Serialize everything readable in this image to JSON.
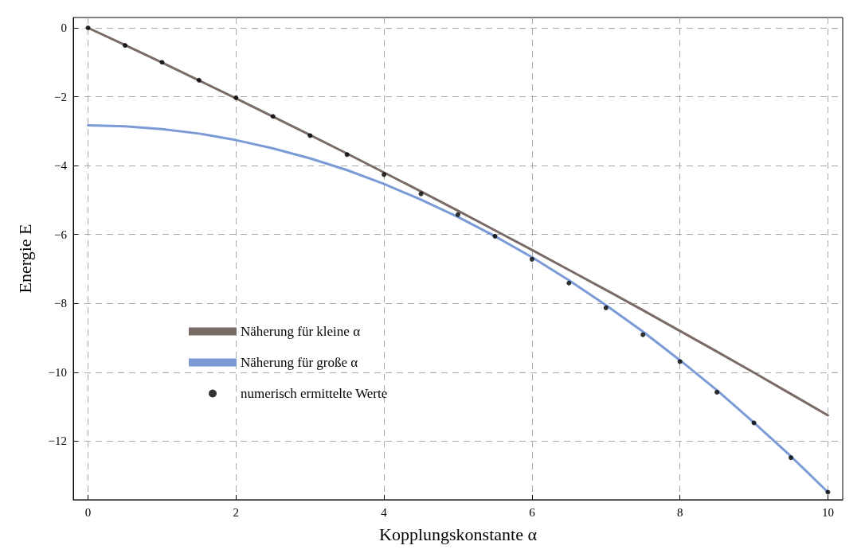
{
  "chart_data": {
    "type": "line",
    "xlabel": "Kopplungskonstante α",
    "ylabel": "Energie E",
    "x": [
      0,
      0.5,
      1,
      1.5,
      2,
      2.5,
      3,
      3.5,
      4,
      4.5,
      5,
      5.5,
      6,
      6.5,
      7,
      7.5,
      8,
      8.5,
      9,
      9.5,
      10
    ],
    "series": [
      {
        "name": "Näherung für kleine α",
        "marker": "none",
        "color": "#7a6b66",
        "values": [
          0,
          -0.5,
          -1.01,
          -1.53,
          -2.05,
          -2.58,
          -3.11,
          -3.65,
          -4.2,
          -4.75,
          -5.31,
          -5.88,
          -6.45,
          -7.03,
          -7.61,
          -8.2,
          -8.8,
          -9.4,
          -10.01,
          -10.63,
          -11.25
        ]
      },
      {
        "name": "Näherung für große α",
        "marker": "none",
        "color": "#7b9bd6",
        "values": [
          -2.83,
          -2.86,
          -2.94,
          -3.07,
          -3.26,
          -3.5,
          -3.79,
          -4.13,
          -4.53,
          -4.99,
          -5.49,
          -6.05,
          -6.66,
          -7.33,
          -8.05,
          -8.82,
          -9.65,
          -10.52,
          -11.46,
          -12.44,
          -13.48
        ]
      },
      {
        "name": "numerisch ermittelte Werte",
        "type": "scatter",
        "marker": "circle",
        "color": "#000000",
        "values": [
          0,
          -0.51,
          -1.0,
          -1.52,
          -2.03,
          -2.57,
          -3.13,
          -3.68,
          -4.26,
          -4.82,
          -5.42,
          -6.05,
          -6.72,
          -7.41,
          -8.13,
          -8.91,
          -9.69,
          -10.58,
          -11.47,
          -12.48,
          -13.48
        ]
      }
    ],
    "xlim": [
      -0.2,
      10.2
    ],
    "xticks": [
      0,
      2,
      4,
      6,
      8,
      10
    ],
    "ylim": [
      -13.7,
      0.3
    ],
    "yticks": [
      {
        "value": 0,
        "label": "0"
      },
      {
        "value": -2,
        "label": "−2"
      },
      {
        "value": -4,
        "label": "−4"
      },
      {
        "value": -6,
        "label": "−6"
      },
      {
        "value": -8,
        "label": "−8"
      },
      {
        "value": -10,
        "label": "−10"
      },
      {
        "value": -12,
        "label": "−12"
      }
    ],
    "grid": true,
    "legend": "bottom left",
    "line_style": "solid"
  }
}
